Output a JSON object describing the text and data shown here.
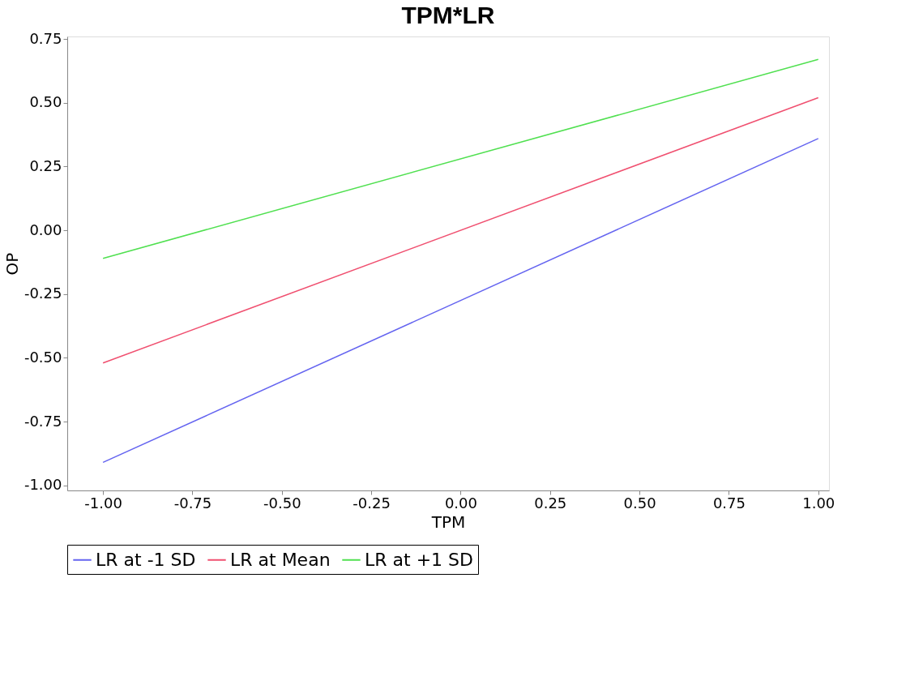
{
  "chart_data": {
    "type": "line",
    "title": "TPM*LR",
    "xlabel": "TPM",
    "ylabel": "OP",
    "x": [
      -1.0,
      1.0
    ],
    "series": [
      {
        "name": "LR at -1 SD",
        "color": "#6464f0",
        "values": [
          -0.91,
          0.36
        ]
      },
      {
        "name": "LR at Mean",
        "color": "#f05070",
        "values": [
          -0.52,
          0.52
        ]
      },
      {
        "name": "LR at +1 SD",
        "color": "#50e050",
        "values": [
          -0.11,
          0.67
        ]
      }
    ],
    "xlim": [
      -1.1,
      1.03
    ],
    "ylim": [
      -1.02,
      0.76
    ],
    "xticks": [
      {
        "value": -1,
        "label": "-1.00"
      },
      {
        "value": -0.75,
        "label": "-0.75"
      },
      {
        "value": -0.5,
        "label": "-0.50"
      },
      {
        "value": -0.25,
        "label": "-0.25"
      },
      {
        "value": 0,
        "label": "0.00"
      },
      {
        "value": 0.25,
        "label": "0.25"
      },
      {
        "value": 0.5,
        "label": "0.50"
      },
      {
        "value": 0.75,
        "label": "0.75"
      },
      {
        "value": 1,
        "label": "1.00"
      }
    ],
    "yticks": [
      {
        "value": -1,
        "label": "-1.00"
      },
      {
        "value": -0.75,
        "label": "-0.75"
      },
      {
        "value": -0.5,
        "label": "-0.50"
      },
      {
        "value": -0.25,
        "label": "-0.25"
      },
      {
        "value": 0,
        "label": "0.00"
      },
      {
        "value": 0.25,
        "label": "0.25"
      },
      {
        "value": 0.5,
        "label": "0.50"
      },
      {
        "value": 0.75,
        "label": "0.75"
      }
    ],
    "grid": false,
    "legend": "bottom",
    "marker": "none",
    "line_style": "solid"
  }
}
